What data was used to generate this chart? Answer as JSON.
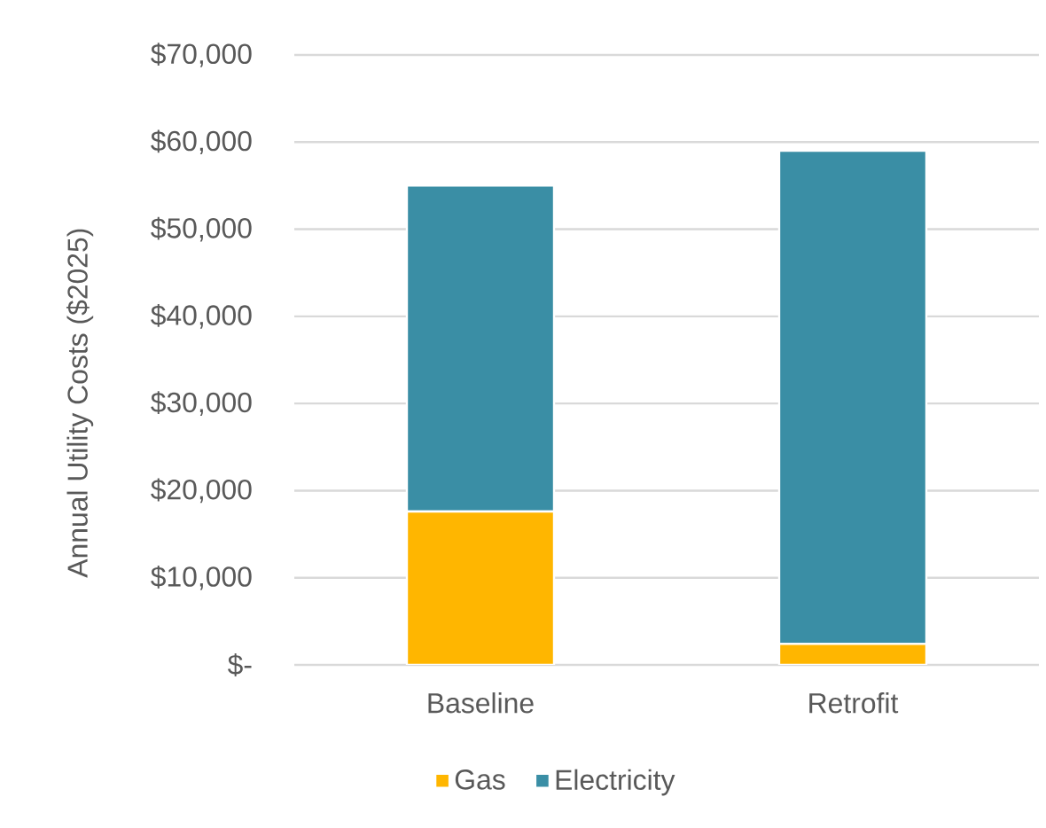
{
  "chart_data": {
    "type": "bar",
    "stacked": true,
    "ylabel": "Annual Utility Costs ($2025)",
    "categories": [
      "Baseline",
      "Retrofit"
    ],
    "series": [
      {
        "name": "Gas",
        "color": "#ffb600",
        "values": [
          17600,
          2400
        ]
      },
      {
        "name": "Electricity",
        "color": "#3a8ea5",
        "values": [
          37400,
          56600
        ]
      }
    ],
    "ylim": [
      0,
      70000
    ],
    "yticks": [
      {
        "value": 0,
        "label": "$-"
      },
      {
        "value": 10000,
        "label": "$10,000"
      },
      {
        "value": 20000,
        "label": "$20,000"
      },
      {
        "value": 30000,
        "label": "$30,000"
      },
      {
        "value": 40000,
        "label": "$40,000"
      },
      {
        "value": 50000,
        "label": "$50,000"
      },
      {
        "value": 60000,
        "label": "$60,000"
      },
      {
        "value": 70000,
        "label": "$70,000"
      }
    ],
    "grid": "y",
    "legend": "bottom"
  }
}
